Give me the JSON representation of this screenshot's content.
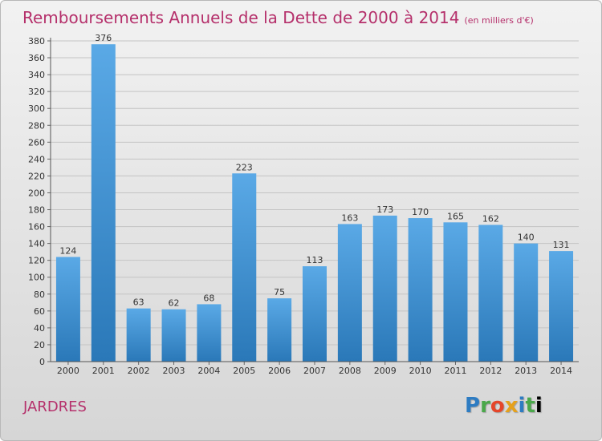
{
  "title": "Remboursements Annuels de la Dette de 2000 à 2014",
  "title_unit": "(en milliers d'€)",
  "commune": "JARDRES",
  "brand": "Proxiti",
  "colors": {
    "title": "#b5306b",
    "bar_top": "#5aa9e6",
    "bar_bottom": "#2a78b8",
    "grid": "#c4c4c4"
  },
  "chart_data": {
    "type": "bar",
    "title": "Remboursements Annuels de la Dette de 2000 à 2014",
    "xlabel": "",
    "ylabel": "",
    "ylim": [
      0,
      380
    ],
    "ytick_step": 20,
    "grid": true,
    "categories": [
      "2000",
      "2001",
      "2002",
      "2003",
      "2004",
      "2005",
      "2006",
      "2007",
      "2008",
      "2009",
      "2010",
      "2011",
      "2012",
      "2013",
      "2014"
    ],
    "values": [
      124,
      376,
      63,
      62,
      68,
      223,
      75,
      113,
      163,
      173,
      170,
      165,
      162,
      140,
      131
    ]
  }
}
